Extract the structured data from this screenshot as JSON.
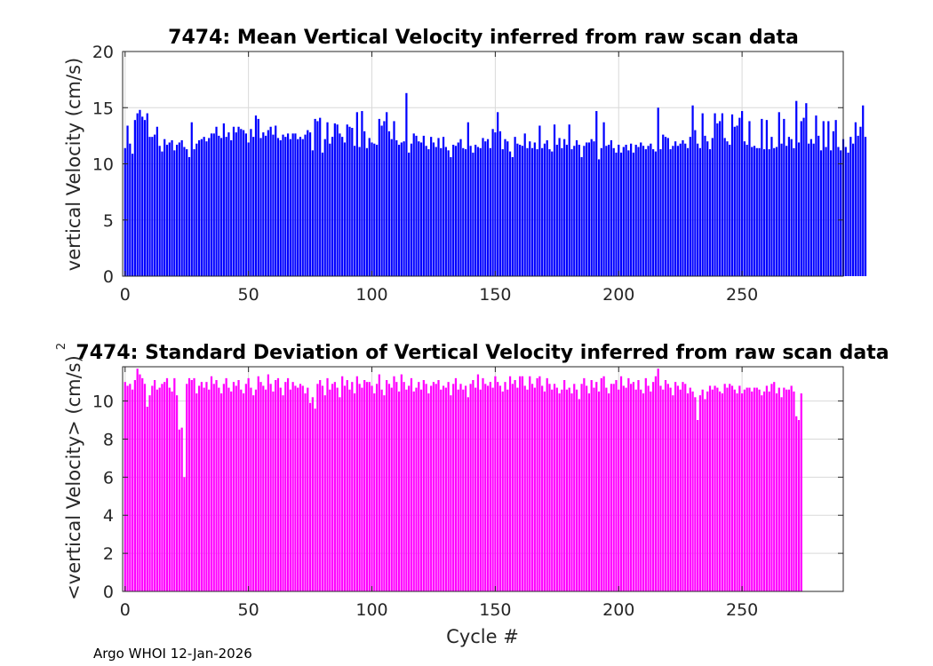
{
  "footer": "Argo WHOI 12-Jan-2026",
  "colors": {
    "mean_bar": "#0000ff",
    "std_bar": "#ff00ff",
    "grid": "#d9d9d9",
    "axis": "#262626"
  },
  "chart_data": [
    {
      "type": "bar",
      "title": "7474: Mean Vertical Velocity inferred from raw scan data",
      "xlabel": "",
      "ylabel": "vertical Velocity (cm/s)",
      "xlim": [
        -1,
        291
      ],
      "ylim": [
        0,
        20
      ],
      "xticks": [
        0,
        50,
        100,
        150,
        200,
        250
      ],
      "yticks": [
        0,
        5,
        10,
        15,
        20
      ],
      "grid": true,
      "series": [
        {
          "name": "mean vertical velocity",
          "color": "#0000ff",
          "x_start": 0,
          "values": [
            11.4,
            13.4,
            11.8,
            10.9,
            13.9,
            14.5,
            14.8,
            14.2,
            13.9,
            14.5,
            12.4,
            12.4,
            12.6,
            13.3,
            11.6,
            11.1,
            12.2,
            11.7,
            11.9,
            12.1,
            11.2,
            11.7,
            11.9,
            12.1,
            11.5,
            11.3,
            10.6,
            13.7,
            11.3,
            11.8,
            12.1,
            12.2,
            12.4,
            12.0,
            12.3,
            12.7,
            12.7,
            13.3,
            12.5,
            12.3,
            13.6,
            12.4,
            12.8,
            12.1,
            13.3,
            12.8,
            13.3,
            13.1,
            13.0,
            12.7,
            11.9,
            13.1,
            12.4,
            14.3,
            14.0,
            12.3,
            12.8,
            12.5,
            13.0,
            13.3,
            12.6,
            13.4,
            12.3,
            12.1,
            12.6,
            12.4,
            12.7,
            12.2,
            12.7,
            12.7,
            12.2,
            12.4,
            12.2,
            12.6,
            13.0,
            12.8,
            11.2,
            14.0,
            13.8,
            14.1,
            11.0,
            12.2,
            13.7,
            11.8,
            12.4,
            13.6,
            13.5,
            12.7,
            12.4,
            11.9,
            13.5,
            13.3,
            13.2,
            11.6,
            14.6,
            11.5,
            14.7,
            12.9,
            11.4,
            12.3,
            11.9,
            11.8,
            11.7,
            14.0,
            13.4,
            13.8,
            14.6,
            12.9,
            12.2,
            13.8,
            12.1,
            11.7,
            11.9,
            12.0,
            16.3,
            11.0,
            11.8,
            12.7,
            12.5,
            12.0,
            11.9,
            12.5,
            11.6,
            11.3,
            12.4,
            11.9,
            11.5,
            12.3,
            11.4,
            12.4,
            11.5,
            11.2,
            10.6,
            11.7,
            11.6,
            11.9,
            12.2,
            11.4,
            11.3,
            13.7,
            11.6,
            11.0,
            11.7,
            11.5,
            11.4,
            12.3,
            12.0,
            12.2,
            11.4,
            13.1,
            12.8,
            14.6,
            12.9,
            11.3,
            12.2,
            12.0,
            11.1,
            10.6,
            12.4,
            11.8,
            11.7,
            11.6,
            12.7,
            11.4,
            12.0,
            11.4,
            11.9,
            11.3,
            13.4,
            11.4,
            11.8,
            12.1,
            11.3,
            11.1,
            13.5,
            11.7,
            12.3,
            11.4,
            12.2,
            11.7,
            13.5,
            11.3,
            11.6,
            12.1,
            11.7,
            10.6,
            11.6,
            11.9,
            11.9,
            12.2,
            12.0,
            14.7,
            10.4,
            11.4,
            13.7,
            11.6,
            11.7,
            12.1,
            11.4,
            11.0,
            11.7,
            11.0,
            11.5,
            11.7,
            11.2,
            11.8,
            11.0,
            11.7,
            11.5,
            11.9,
            11.6,
            11.3,
            11.6,
            11.8,
            11.3,
            11.1,
            15.0,
            11.3,
            12.6,
            12.4,
            12.3,
            11.3,
            11.6,
            12.0,
            11.6,
            11.8,
            12.1,
            11.8,
            11.4,
            12.4,
            15.2,
            13.0,
            11.8,
            11.4,
            14.5,
            12.5,
            12.0,
            11.3,
            12.3,
            14.5,
            13.6,
            13.8,
            14.5,
            12.3,
            12.0,
            11.7,
            14.4,
            13.3,
            13.4,
            14.1,
            14.7,
            12.0,
            11.7,
            13.8,
            11.5,
            11.6,
            11.4,
            11.4,
            14.0,
            11.3,
            13.9,
            11.3,
            12.4,
            11.4,
            11.5,
            14.6,
            11.8,
            14.0,
            11.6,
            12.4,
            12.2,
            11.4,
            15.6,
            11.9,
            13.8,
            14.1,
            15.4,
            11.8,
            12.2,
            11.8,
            14.3,
            12.5,
            11.2,
            13.8,
            11.5,
            13.8,
            11.2,
            12.9,
            13.9,
            11.5,
            11.2,
            12.2,
            11.5,
            11.0,
            12.4,
            11.8,
            13.7,
            12.5,
            13.3,
            15.2,
            12.4
          ]
        }
      ]
    },
    {
      "type": "bar",
      "title": "7474: Standard Deviation of Vertical Velocity inferred from raw scan data",
      "xlabel": "Cycle #",
      "ylabel": "<vertical Velocity> (cm/s)",
      "ylabel_superscript": "2",
      "xlim": [
        -1,
        291
      ],
      "ylim": [
        0,
        11.8
      ],
      "xticks": [
        0,
        50,
        100,
        150,
        200,
        250
      ],
      "yticks": [
        0,
        2,
        4,
        6,
        8,
        10
      ],
      "grid": true,
      "series": [
        {
          "name": "std vertical velocity",
          "color": "#ff00ff",
          "x_start": 0,
          "values": [
            11.0,
            10.8,
            10.9,
            10.6,
            11.1,
            11.7,
            11.4,
            11.2,
            10.9,
            9.7,
            10.3,
            10.8,
            11.1,
            10.6,
            10.7,
            10.9,
            11.0,
            11.2,
            10.7,
            10.5,
            11.2,
            10.3,
            8.5,
            8.6,
            6.0,
            10.9,
            11.2,
            11.1,
            11.2,
            10.4,
            10.8,
            11.0,
            10.7,
            11.0,
            10.6,
            11.3,
            10.9,
            11.1,
            10.7,
            10.4,
            10.9,
            11.2,
            10.7,
            10.5,
            11.0,
            10.8,
            11.1,
            10.6,
            10.4,
            10.9,
            11.2,
            10.7,
            10.3,
            10.6,
            11.3,
            11.0,
            10.8,
            10.6,
            11.4,
            10.9,
            10.5,
            11.1,
            11.2,
            10.7,
            10.3,
            11.0,
            11.2,
            10.6,
            11.0,
            10.8,
            10.7,
            10.9,
            10.8,
            10.4,
            10.7,
            9.9,
            10.2,
            9.6,
            10.9,
            11.1,
            10.8,
            10.3,
            11.2,
            10.6,
            10.9,
            11.0,
            10.7,
            10.2,
            11.3,
            10.8,
            11.1,
            10.6,
            11.0,
            10.4,
            11.3,
            10.9,
            10.7,
            11.1,
            11.0,
            11.0,
            10.8,
            10.4,
            10.9,
            11.4,
            10.6,
            10.3,
            11.1,
            10.9,
            10.7,
            11.3,
            11.0,
            10.5,
            11.4,
            11.0,
            10.6,
            10.8,
            11.2,
            10.5,
            10.7,
            11.0,
            10.6,
            11.1,
            10.9,
            10.4,
            10.8,
            11.0,
            10.9,
            11.1,
            10.6,
            10.8,
            10.7,
            11.0,
            10.3,
            10.9,
            11.2,
            10.6,
            10.9,
            10.6,
            10.8,
            10.2,
            10.9,
            11.1,
            10.7,
            11.4,
            10.6,
            11.2,
            10.9,
            10.8,
            11.0,
            10.7,
            11.3,
            11.0,
            10.8,
            10.5,
            11.0,
            10.6,
            11.3,
            10.9,
            11.1,
            10.7,
            11.3,
            11.3,
            10.8,
            10.6,
            11.3,
            10.9,
            10.7,
            11.2,
            11.3,
            10.8,
            10.5,
            11.2,
            10.9,
            10.6,
            10.9,
            10.7,
            10.4,
            10.6,
            11.1,
            10.6,
            10.7,
            10.4,
            10.9,
            10.6,
            10.1,
            10.9,
            11.2,
            10.8,
            10.4,
            11.1,
            10.7,
            11.0,
            10.5,
            11.2,
            11.3,
            10.7,
            10.4,
            10.9,
            10.9,
            11.1,
            10.6,
            11.3,
            10.8,
            10.7,
            11.2,
            10.9,
            11.0,
            10.6,
            11.1,
            10.6,
            10.4,
            11.2,
            10.8,
            10.5,
            11.0,
            11.3,
            11.7,
            10.8,
            10.6,
            11.1,
            10.9,
            10.7,
            10.3,
            11.0,
            10.8,
            10.6,
            11.0,
            10.9,
            10.4,
            10.7,
            10.5,
            10.2,
            9.0,
            10.3,
            10.6,
            10.1,
            10.5,
            10.8,
            10.6,
            10.8,
            10.7,
            10.5,
            10.4,
            10.9,
            10.7,
            10.9,
            10.8,
            10.6,
            10.4,
            10.8,
            10.4,
            10.6,
            10.7,
            10.7,
            10.5,
            10.7,
            10.7,
            10.6,
            10.3,
            10.5,
            10.8,
            10.5,
            10.9,
            11.0,
            10.4,
            10.7,
            10.2,
            10.7,
            10.6,
            10.6,
            10.8,
            10.5,
            9.2,
            9.0,
            10.4
          ]
        }
      ]
    }
  ]
}
